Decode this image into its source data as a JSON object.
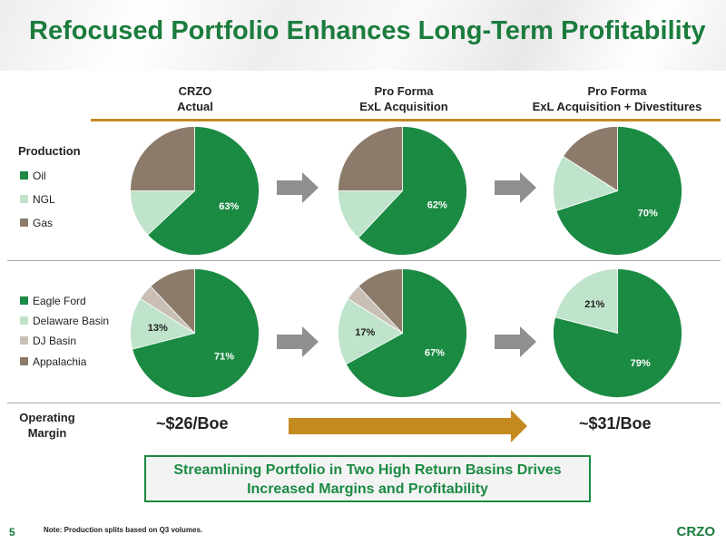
{
  "title": "Refocused Portfolio Enhances Long-Term Profitability",
  "columns": [
    {
      "line1": "CRZO",
      "line2": "Actual"
    },
    {
      "line1": "Pro Forma",
      "line2": "ExL Acquisition"
    },
    {
      "line1": "Pro Forma",
      "line2": "ExL Acquisition + Divestitures"
    }
  ],
  "production_label": "Production",
  "product_legend": [
    "Oil",
    "NGL",
    "Gas"
  ],
  "basin_legend": [
    "Eagle Ford",
    "Delaware Basin",
    "DJ Basin",
    "Appalachia"
  ],
  "colors": {
    "title": "#1b7c3d",
    "oil": "#1b8a43",
    "ngl": "#bfe3cb",
    "gas": "#8c7b6b",
    "dj": "#c9bfb4",
    "accent_gold": "#c58a1f",
    "arrow_gray": "#8f8f8f"
  },
  "operating_margin": {
    "label_line1": "Operating",
    "label_line2": "Margin",
    "before": "~$26/Boe",
    "after": "~$31/Boe"
  },
  "callout": {
    "line1": "Streamlining Portfolio in Two High Return Basins Drives",
    "line2": "Increased Margins and Profitability"
  },
  "footer": {
    "page_number": "5",
    "note": "Note: Production splits based on Q3 volumes.",
    "brand": "CRZO"
  },
  "chart_data": [
    {
      "type": "pie",
      "row": "production",
      "column": "CRZO Actual",
      "categories": [
        "Oil",
        "NGL",
        "Gas"
      ],
      "values": [
        63,
        12,
        25
      ],
      "labels": [
        "63%",
        "",
        ""
      ]
    },
    {
      "type": "pie",
      "row": "production",
      "column": "Pro Forma ExL Acquisition",
      "categories": [
        "Oil",
        "NGL",
        "Gas"
      ],
      "values": [
        62,
        13,
        25
      ],
      "labels": [
        "62%",
        "",
        ""
      ]
    },
    {
      "type": "pie",
      "row": "production",
      "column": "Pro Forma ExL Acquisition + Divestitures",
      "categories": [
        "Oil",
        "NGL",
        "Gas"
      ],
      "values": [
        70,
        14,
        16
      ],
      "labels": [
        "70%",
        "",
        ""
      ]
    },
    {
      "type": "pie",
      "row": "basins",
      "column": "CRZO Actual",
      "categories": [
        "Eagle Ford",
        "Delaware Basin",
        "DJ Basin",
        "Appalachia"
      ],
      "values": [
        71,
        13,
        4,
        12
      ],
      "labels": [
        "71%",
        "13%",
        "",
        ""
      ]
    },
    {
      "type": "pie",
      "row": "basins",
      "column": "Pro Forma ExL Acquisition",
      "categories": [
        "Eagle Ford",
        "Delaware Basin",
        "DJ Basin",
        "Appalachia"
      ],
      "values": [
        67,
        17,
        4,
        12
      ],
      "labels": [
        "67%",
        "17%",
        "",
        ""
      ]
    },
    {
      "type": "pie",
      "row": "basins",
      "column": "Pro Forma ExL Acquisition + Divestitures",
      "categories": [
        "Eagle Ford",
        "Delaware Basin",
        "DJ Basin",
        "Appalachia"
      ],
      "values": [
        79,
        21,
        0,
        0
      ],
      "labels": [
        "79%",
        "21%",
        "",
        ""
      ]
    }
  ]
}
